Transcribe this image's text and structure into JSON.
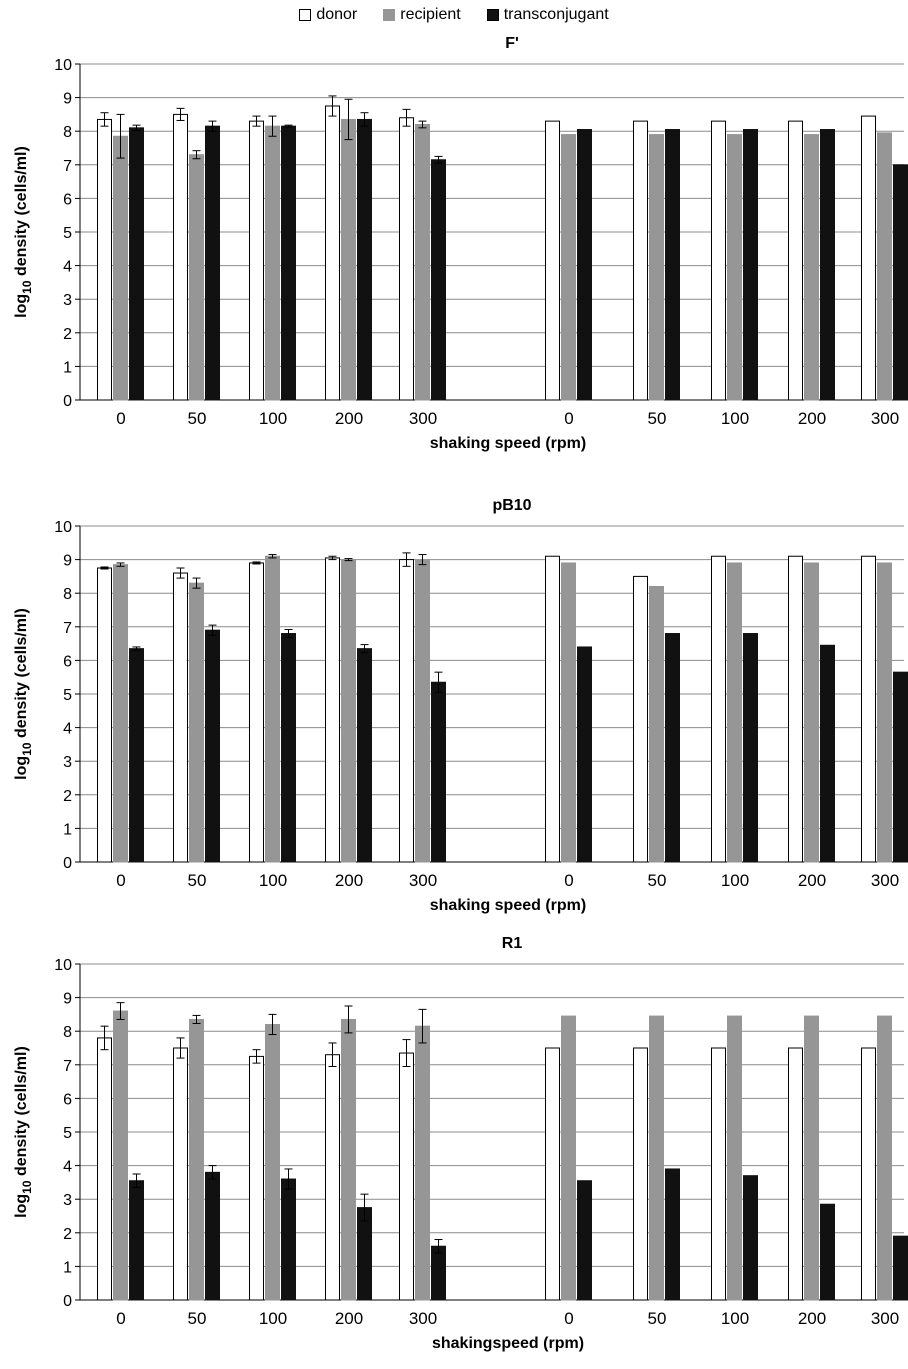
{
  "legend": {
    "entries": [
      {
        "label": "donor",
        "color": "#ffffff"
      },
      {
        "label": "recipient",
        "color": "#969696"
      },
      {
        "label": "transconjugant",
        "color": "#111111"
      }
    ]
  },
  "chart_data": [
    {
      "type": "bar",
      "title": "F'",
      "xlabel": "shaking speed (rpm)",
      "ylabel": "log10 density (cells/ml)",
      "ylim": [
        0,
        10
      ],
      "yticks": [
        0,
        1,
        2,
        3,
        4,
        5,
        6,
        7,
        8,
        9,
        10
      ],
      "grid": true,
      "categories": [
        "0",
        "50",
        "100",
        "200",
        "300",
        "0",
        "50",
        "100",
        "200",
        "300"
      ],
      "series": [
        {
          "name": "donor",
          "color": "#ffffff",
          "values": [
            8.35,
            8.5,
            8.3,
            8.75,
            8.4,
            8.3,
            8.3,
            8.3,
            8.3,
            8.45
          ],
          "errors": [
            0.2,
            0.18,
            0.15,
            0.3,
            0.25,
            null,
            null,
            null,
            null,
            null
          ]
        },
        {
          "name": "recipient",
          "color": "#969696",
          "values": [
            7.85,
            7.3,
            8.15,
            8.35,
            8.2,
            7.9,
            7.9,
            7.9,
            7.9,
            7.95
          ],
          "errors": [
            0.65,
            0.12,
            0.3,
            0.6,
            0.1,
            null,
            null,
            null,
            null,
            null
          ]
        },
        {
          "name": "transconjugant",
          "color": "#111111",
          "values": [
            8.1,
            8.15,
            8.15,
            8.35,
            7.15,
            8.05,
            8.05,
            8.05,
            8.05,
            7.0
          ],
          "errors": [
            0.08,
            0.15,
            0.03,
            0.2,
            0.1,
            null,
            null,
            null,
            null,
            null
          ]
        }
      ]
    },
    {
      "type": "bar",
      "title": "pB10",
      "xlabel": "shaking speed (rpm)",
      "ylabel": "log10 density (cells/ml)",
      "ylim": [
        0,
        10
      ],
      "yticks": [
        0,
        1,
        2,
        3,
        4,
        5,
        6,
        7,
        8,
        9,
        10
      ],
      "grid": true,
      "categories": [
        "0",
        "50",
        "100",
        "200",
        "300",
        "0",
        "50",
        "100",
        "200",
        "300"
      ],
      "series": [
        {
          "name": "donor",
          "color": "#ffffff",
          "values": [
            8.75,
            8.6,
            8.9,
            9.05,
            9.0,
            9.1,
            8.5,
            9.1,
            9.1,
            9.1
          ],
          "errors": [
            0.03,
            0.15,
            0.03,
            0.05,
            0.2,
            null,
            null,
            null,
            null,
            null
          ]
        },
        {
          "name": "recipient",
          "color": "#969696",
          "values": [
            8.85,
            8.3,
            9.1,
            9.0,
            9.0,
            8.9,
            8.2,
            8.9,
            8.9,
            8.9
          ],
          "errors": [
            0.05,
            0.15,
            0.05,
            0.03,
            0.15,
            null,
            null,
            null,
            null,
            null
          ]
        },
        {
          "name": "transconjugant",
          "color": "#111111",
          "values": [
            6.35,
            6.9,
            6.8,
            6.35,
            5.35,
            6.4,
            6.8,
            6.8,
            6.45,
            5.65
          ],
          "errors": [
            0.05,
            0.15,
            0.12,
            0.12,
            0.3,
            null,
            null,
            null,
            null,
            null
          ]
        }
      ]
    },
    {
      "type": "bar",
      "title": "R1",
      "xlabel": "shakingspeed (rpm)",
      "ylabel": "log10 density (cells/ml)",
      "ylim": [
        0,
        10
      ],
      "yticks": [
        0,
        1,
        2,
        3,
        4,
        5,
        6,
        7,
        8,
        9,
        10
      ],
      "grid": true,
      "categories": [
        "0",
        "50",
        "100",
        "200",
        "300",
        "0",
        "50",
        "100",
        "200",
        "300"
      ],
      "series": [
        {
          "name": "donor",
          "color": "#ffffff",
          "values": [
            7.8,
            7.5,
            7.25,
            7.3,
            7.35,
            7.5,
            7.5,
            7.5,
            7.5,
            7.5
          ],
          "errors": [
            0.35,
            0.3,
            0.2,
            0.35,
            0.4,
            null,
            null,
            null,
            null,
            null
          ]
        },
        {
          "name": "recipient",
          "color": "#969696",
          "values": [
            8.6,
            8.35,
            8.2,
            8.35,
            8.15,
            8.45,
            8.45,
            8.45,
            8.45,
            8.45
          ],
          "errors": [
            0.25,
            0.12,
            0.3,
            0.4,
            0.5,
            null,
            null,
            null,
            null,
            null
          ]
        },
        {
          "name": "transconjugant",
          "color": "#111111",
          "values": [
            3.55,
            3.8,
            3.6,
            2.75,
            1.6,
            3.55,
            3.9,
            3.7,
            2.85,
            1.9
          ],
          "errors": [
            0.2,
            0.2,
            0.3,
            0.4,
            0.2,
            null,
            null,
            null,
            null,
            null
          ]
        }
      ]
    }
  ]
}
